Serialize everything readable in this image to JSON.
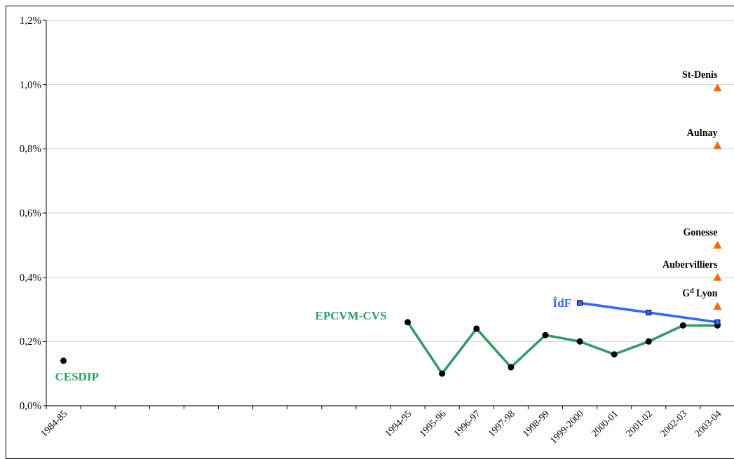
{
  "chart_data": {
    "type": "line",
    "categories": [
      "1984-85",
      null,
      null,
      null,
      null,
      null,
      null,
      null,
      null,
      null,
      "1994-95",
      "1995-96",
      "1996-97",
      "1997-98",
      "1998-99",
      "1999-2000",
      "2000-01",
      "2001-02",
      "2002-03",
      "2003-04"
    ],
    "ylim": [
      0,
      1.2
    ],
    "yticks": [
      {
        "value": 0,
        "label": "0,0%"
      },
      {
        "value": 0.2,
        "label": "0,2%"
      },
      {
        "value": 0.4,
        "label": "0,4%"
      },
      {
        "value": 0.6,
        "label": "0,6%"
      },
      {
        "value": 0.8,
        "label": "0,8%"
      },
      {
        "value": 1.0,
        "label": "1,0%"
      },
      {
        "value": 1.2,
        "label": "1,2%"
      }
    ],
    "grid": "y",
    "legend": false,
    "annotations": [
      {
        "text": "CESDIP",
        "x": "1984-85",
        "y": 0.14
      },
      {
        "text": "St-Denis",
        "x": "2003-04",
        "y": 0.99
      },
      {
        "text": "Aulnay",
        "x": "2003-04",
        "y": 0.81
      },
      {
        "text": "Gonesse",
        "x": "2003-04",
        "y": 0.5
      },
      {
        "text": "Aubervilliers",
        "x": "2003-04",
        "y": 0.4
      },
      {
        "text": "G$^{d}$ Lyon",
        "x": "2003-04",
        "y": 0.31
      }
    ],
    "series": [
      {
        "type": "scatter",
        "marker": "circle",
        "color": "#000000",
        "values": [
          0.14,
          null,
          null,
          null,
          null,
          null,
          null,
          null,
          null,
          null,
          null,
          null,
          null,
          null,
          null,
          null,
          null,
          null,
          null,
          null
        ]
      },
      {
        "name": "EPCVM-CVS",
        "marker": "circle",
        "color": "#339966",
        "values": [
          null,
          null,
          null,
          null,
          null,
          null,
          null,
          null,
          null,
          null,
          0.26,
          0.1,
          0.24,
          0.12,
          0.22,
          0.2,
          0.16,
          0.2,
          0.25,
          0.25
        ]
      },
      {
        "name": "ÎdF",
        "marker": "square",
        "color": "#3366ff",
        "values": [
          null,
          null,
          null,
          null,
          null,
          null,
          null,
          null,
          null,
          null,
          null,
          null,
          null,
          null,
          null,
          0.32,
          null,
          0.29,
          null,
          0.26
        ]
      },
      {
        "type": "scatter",
        "marker": "triangle",
        "color": "#ff6600",
        "values": [
          null,
          null,
          null,
          null,
          null,
          null,
          null,
          null,
          null,
          null,
          null,
          null,
          null,
          null,
          null,
          null,
          null,
          null,
          null,
          0.99
        ]
      },
      {
        "type": "scatter",
        "marker": "triangle",
        "color": "#ff6600",
        "values": [
          null,
          null,
          null,
          null,
          null,
          null,
          null,
          null,
          null,
          null,
          null,
          null,
          null,
          null,
          null,
          null,
          null,
          null,
          null,
          0.81
        ]
      },
      {
        "type": "scatter",
        "marker": "triangle",
        "color": "#ff6600",
        "values": [
          null,
          null,
          null,
          null,
          null,
          null,
          null,
          null,
          null,
          null,
          null,
          null,
          null,
          null,
          null,
          null,
          null,
          null,
          null,
          0.5
        ]
      },
      {
        "type": "scatter",
        "marker": "triangle",
        "color": "#ff6600",
        "values": [
          null,
          null,
          null,
          null,
          null,
          null,
          null,
          null,
          null,
          null,
          null,
          null,
          null,
          null,
          null,
          null,
          null,
          null,
          null,
          0.4
        ]
      },
      {
        "type": "scatter",
        "marker": "triangle",
        "color": "#ff6600",
        "values": [
          null,
          null,
          null,
          null,
          null,
          null,
          null,
          null,
          null,
          null,
          null,
          null,
          null,
          null,
          null,
          null,
          null,
          null,
          null,
          0.31
        ]
      }
    ]
  }
}
